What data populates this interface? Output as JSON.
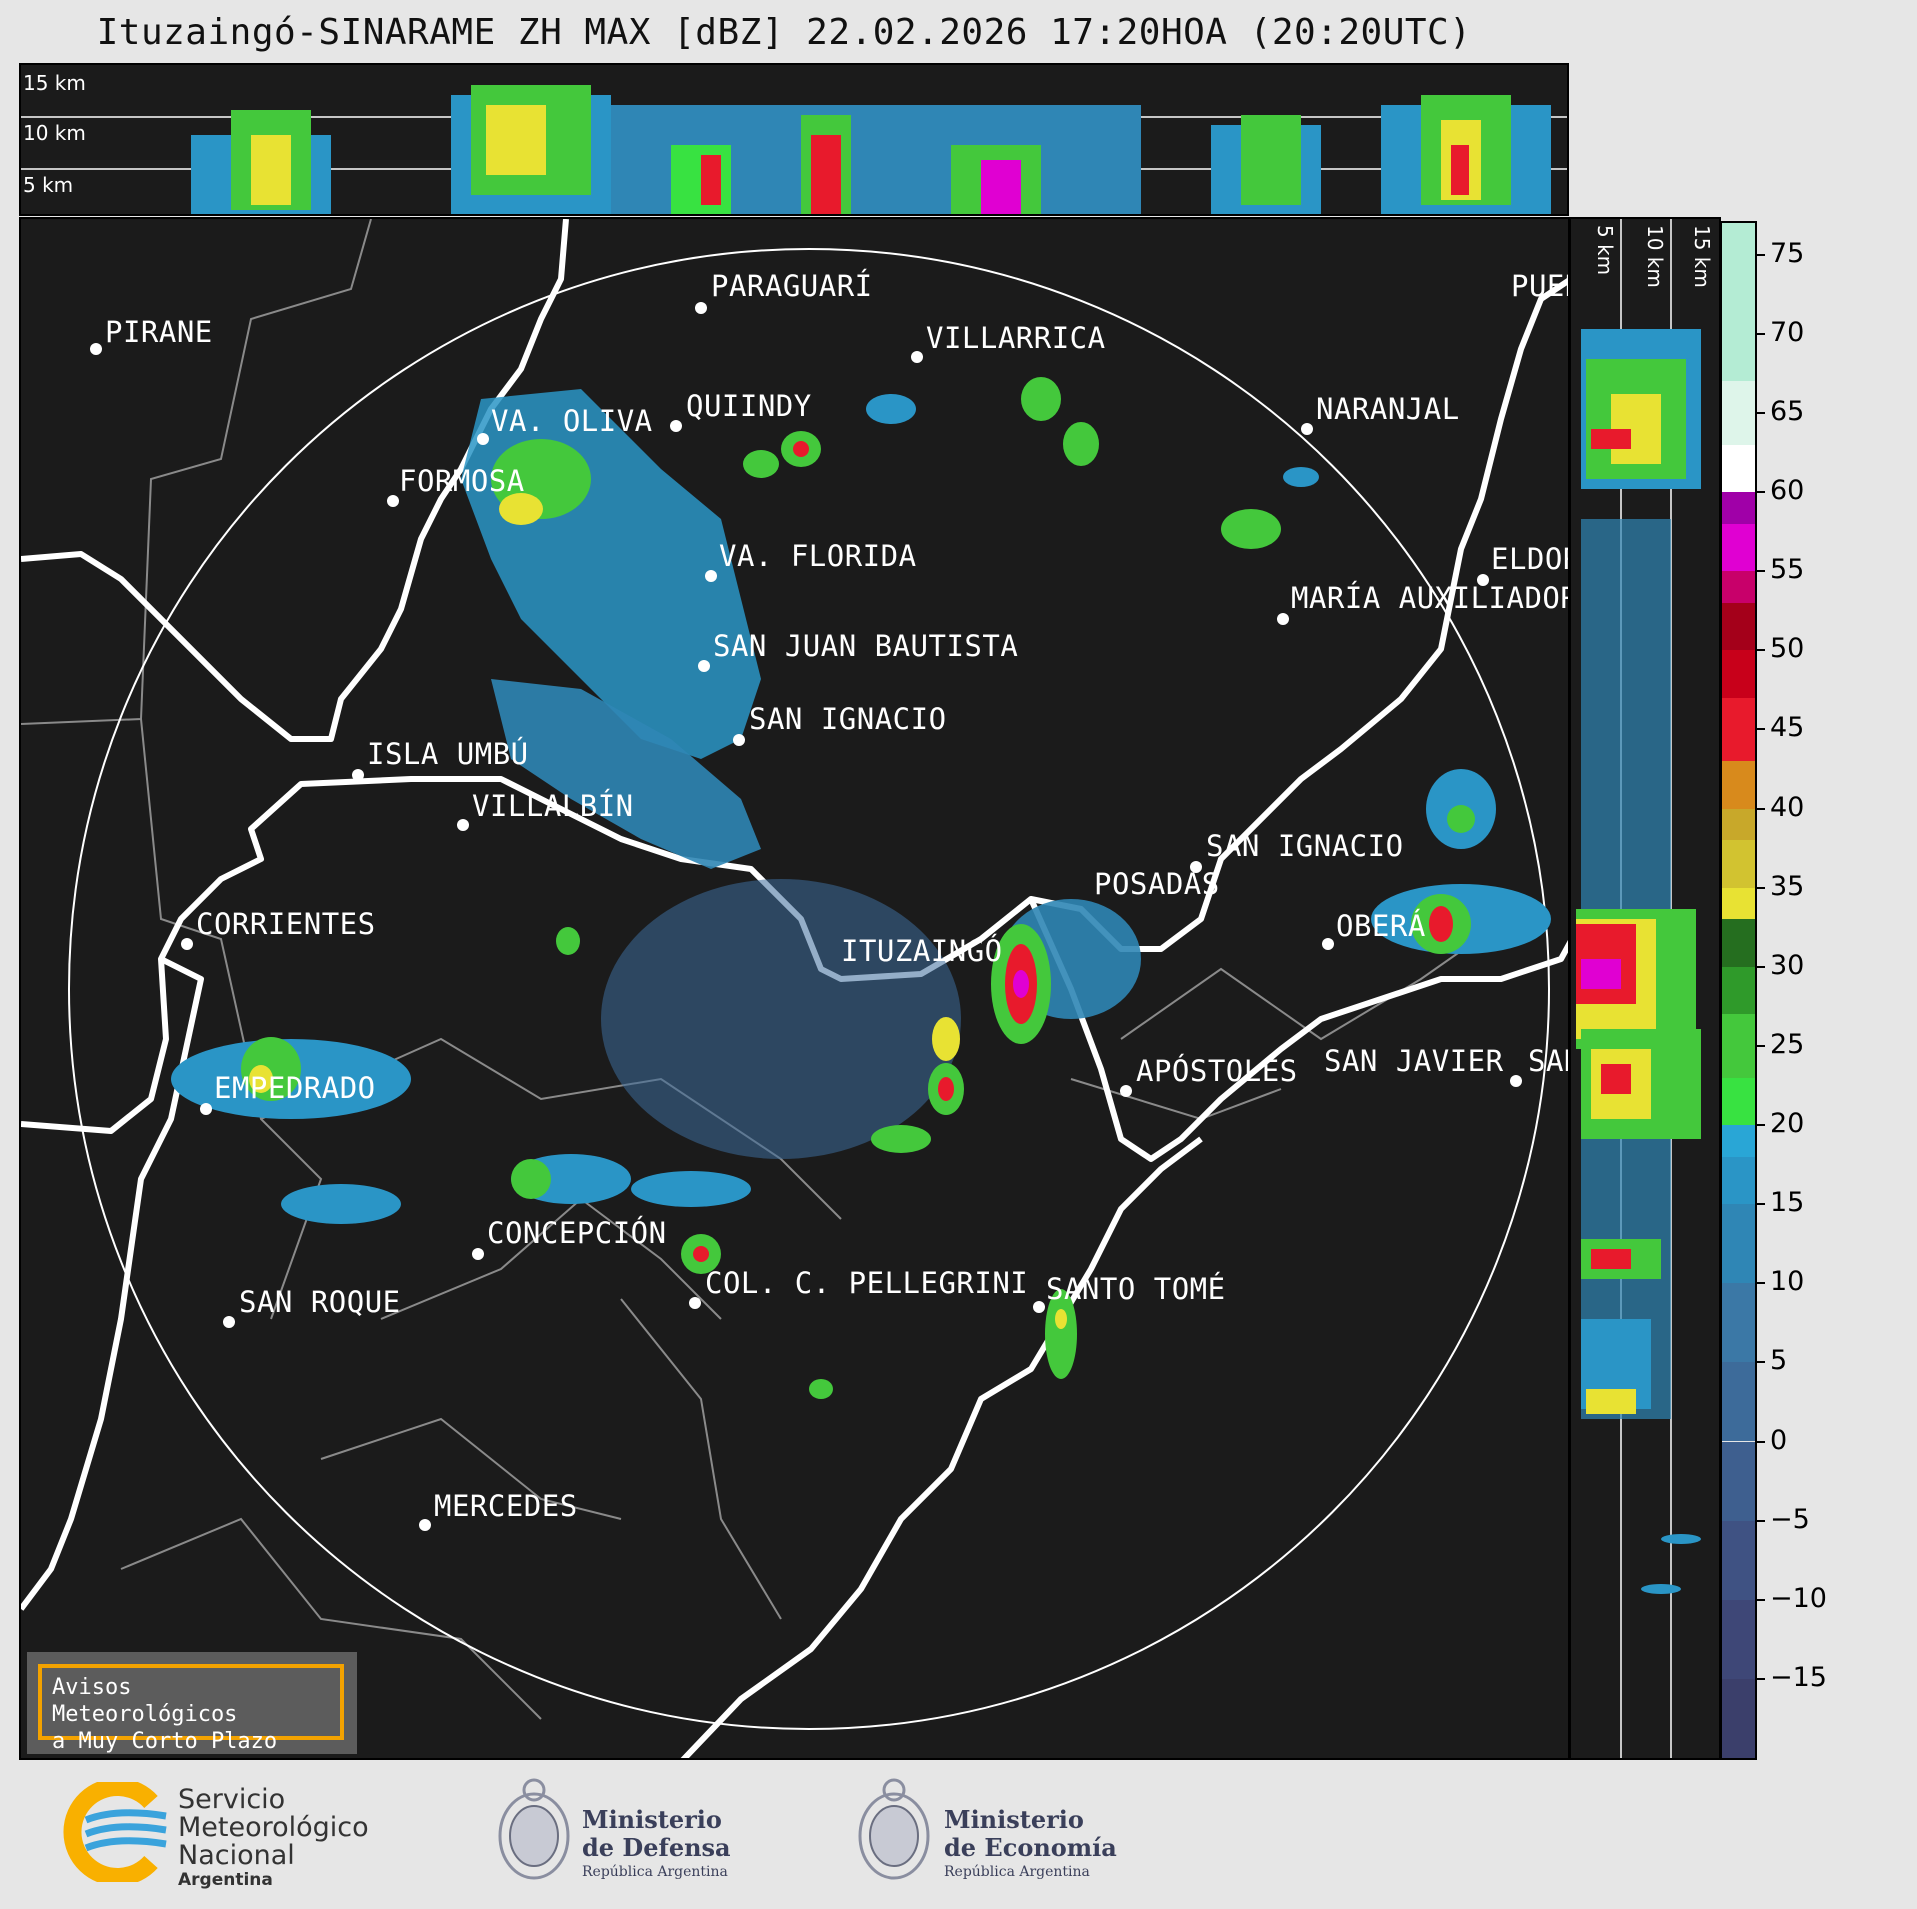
{
  "title": "Ituzaingó-SINARAME ZH MAX [dBZ] 22.02.2026 17:20HOA (20:20UTC)",
  "top_panel": {
    "height_labels": [
      "15 km",
      "10 km",
      "5 km"
    ]
  },
  "right_panel": {
    "height_labels": [
      "5 km",
      "10 km",
      "15 km"
    ]
  },
  "cities": [
    {
      "name": "PIRANE"
    },
    {
      "name": "PARAGUARÍ"
    },
    {
      "name": "VILLARRICA"
    },
    {
      "name": "QUIINDY"
    },
    {
      "name": "VA. OLIVA"
    },
    {
      "name": "FORMOSA"
    },
    {
      "name": "NARANJAL"
    },
    {
      "name": "PUER"
    },
    {
      "name": "VA. FLORIDA"
    },
    {
      "name": "ELDOR"
    },
    {
      "name": "MARÍA AUXILIADOR"
    },
    {
      "name": "SAN JUAN BAUTISTA"
    },
    {
      "name": "SAN IGNACIO"
    },
    {
      "name": "ISLA UMBÚ"
    },
    {
      "name": "VILLALBÍN"
    },
    {
      "name": "SAN IGNACIO"
    },
    {
      "name": "POSADAS"
    },
    {
      "name": "CORRIENTES"
    },
    {
      "name": "ITUZAINGÓ"
    },
    {
      "name": "OBERÁ"
    },
    {
      "name": "APÓSTOLES"
    },
    {
      "name": "SAN JAVIER"
    },
    {
      "name": "SAN"
    },
    {
      "name": "EMPEDRADO"
    },
    {
      "name": "CONCEPCIÓN"
    },
    {
      "name": "COL. C. PELLEGRINI"
    },
    {
      "name": "SANTO TOMÉ"
    },
    {
      "name": "SAN ROQUE"
    },
    {
      "name": "MERCEDES"
    }
  ],
  "colorbar": {
    "unit": "dBZ",
    "ticks": [
      "75",
      "70",
      "65",
      "60",
      "55",
      "50",
      "45",
      "40",
      "35",
      "30",
      "25",
      "20",
      "15",
      "10",
      "5",
      "0",
      "−5",
      "−10",
      "−15"
    ],
    "range": [
      -20,
      77
    ],
    "colors": [
      "#3b3f6b",
      "#3e4777",
      "#3f5283",
      "#3e5f8f",
      "#3d6b9a",
      "#3b78a6",
      "#2f86b5",
      "#2a95c6",
      "#29a6d6",
      "#38e241",
      "#44c83c",
      "#2f9a2a",
      "#256e1f",
      "#e8e233",
      "#d2c330",
      "#c8a82a",
      "#d88a1c",
      "#e81a2c",
      "#c8001a",
      "#a4001a",
      "#c8006a",
      "#e000d2",
      "#a000a8",
      "#ffffff",
      "#def5ea",
      "#b4ecd4",
      "#93e4c0"
    ],
    "stops": [
      -20,
      -15,
      -10,
      -5,
      0,
      5,
      10,
      15,
      18,
      20,
      23,
      27,
      30,
      33,
      35,
      38,
      40,
      43,
      47,
      50,
      53,
      55,
      58,
      60,
      63,
      67,
      77
    ]
  },
  "notice": {
    "line1": "Avisos Meteorológicos",
    "line2": "a Muy Corto Plazo"
  },
  "footer": {
    "smn": {
      "line1": "Servicio",
      "line2": "Meteorológico",
      "line3": "Nacional",
      "line4": "Argentina"
    },
    "defensa": {
      "line1": "Ministerio",
      "line2": "de Defensa",
      "sub": "República Argentina"
    },
    "economia": {
      "line1": "Ministerio",
      "line2": "de Economía",
      "sub": "República Argentina"
    }
  }
}
